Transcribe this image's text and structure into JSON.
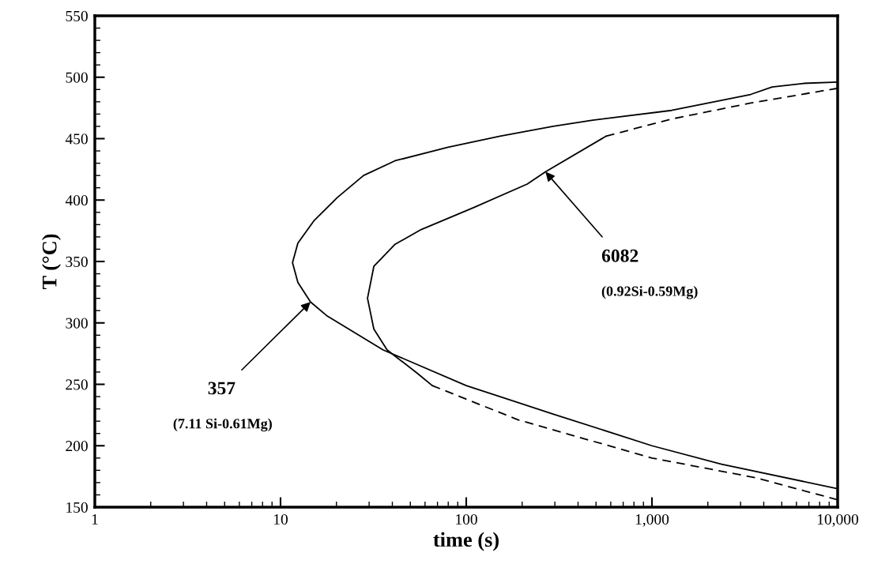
{
  "chart_data": {
    "type": "line",
    "xlabel": "time (s)",
    "ylabel": "T (°C)",
    "log": "x",
    "xlim": [
      1,
      10000
    ],
    "xticks": [
      1,
      10,
      100,
      {
        "value": 1000,
        "label": "1,000"
      },
      {
        "value": 10000,
        "label": "10,000"
      }
    ],
    "ylim": [
      150,
      550
    ],
    "yticks": [
      150,
      200,
      250,
      300,
      350,
      400,
      450,
      500,
      550
    ],
    "series": [
      {
        "color": "#000000",
        "line_style": "solid",
        "x": [
          10000,
          2370,
          1000,
          291,
          100,
          35.7,
          17.7,
          14.5,
          12.4,
          11.6,
          12.4,
          15.1,
          20.2,
          28.0,
          41.4,
          79.8,
          152,
          294,
          480,
          1277,
          3404,
          4434,
          6561,
          10000
        ],
        "values": [
          165,
          185,
          200,
          226,
          249,
          278,
          306,
          317,
          333,
          349,
          365,
          383,
          402,
          420,
          432,
          443,
          452,
          460,
          465,
          473,
          486,
          492,
          495,
          496
        ]
      },
      {
        "color": "#000000",
        "line_style": "dashed",
        "x": [
          10000,
          3607,
          1000,
          191,
          65.6
        ],
        "values": [
          156,
          174,
          190,
          221,
          249
        ]
      },
      {
        "color": "#000000",
        "line_style": "solid",
        "x": [
          65.6,
          54.5,
          37.5,
          31.8,
          29.4,
          31.8,
          41.4,
          57.2,
          110,
          213,
          267,
          566
        ],
        "values": [
          249,
          259,
          278,
          295,
          320,
          346,
          364,
          376,
          394,
          413,
          423,
          452
        ]
      },
      {
        "color": "#000000",
        "line_style": "dashed",
        "x": [
          566,
          1277,
          3404,
          10000
        ],
        "values": [
          452,
          466,
          479,
          491
        ]
      }
    ],
    "annotations": [
      {
        "text": "357",
        "x": 14.5,
        "y": 317
      },
      "(7.11 Si-0.61Mg)",
      {
        "text": "6082",
        "x": 267,
        "y": 423
      },
      "(0.92Si-0.59Mg)"
    ]
  }
}
